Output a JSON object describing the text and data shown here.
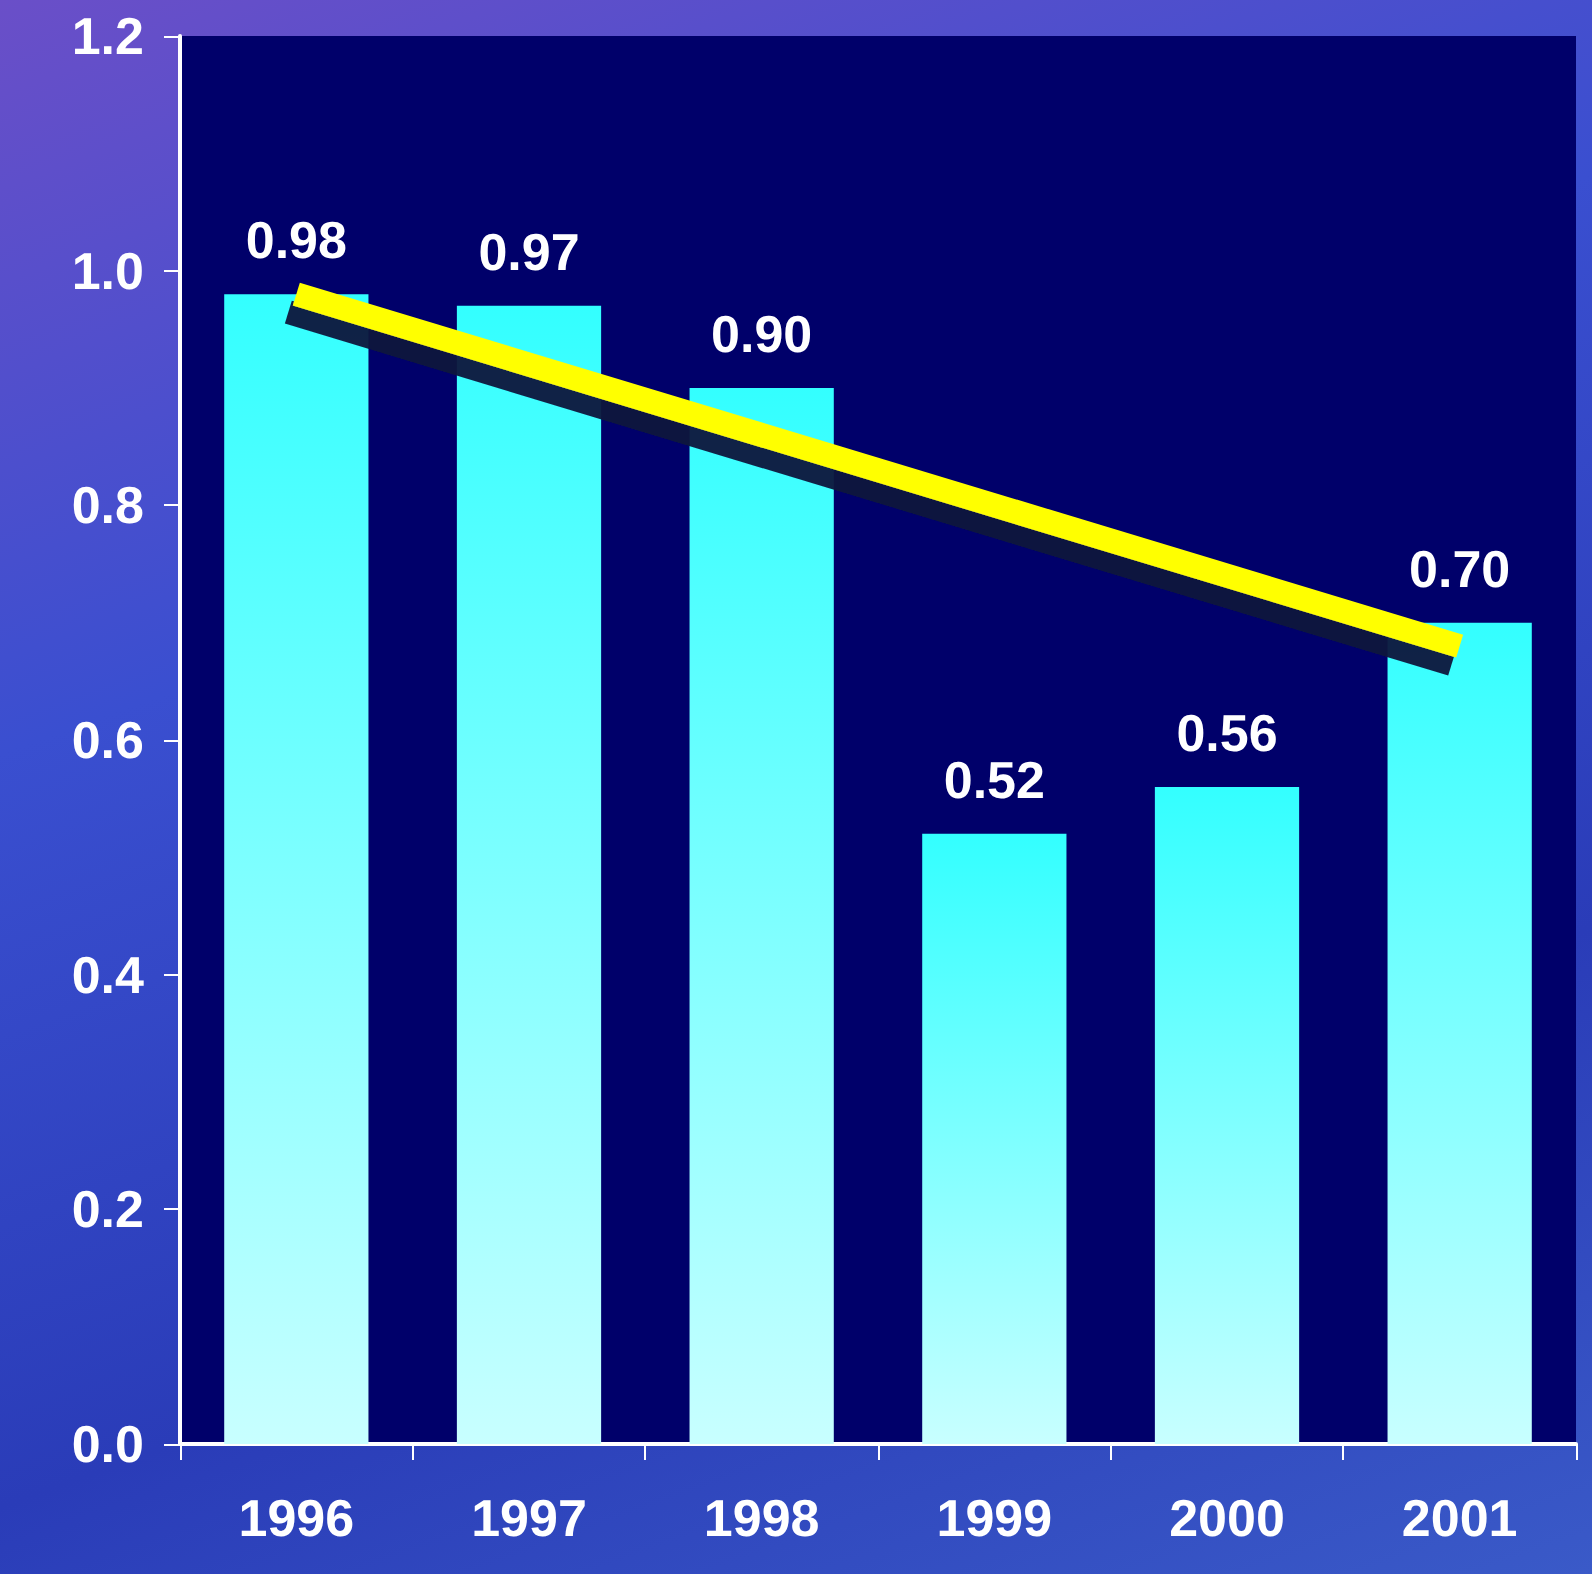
{
  "chart_data": {
    "type": "bar",
    "categories": [
      "1996",
      "1997",
      "1998",
      "1999",
      "2000",
      "2001"
    ],
    "series": [
      {
        "color": "#33ffff",
        "values": [
          0.98,
          0.97,
          0.9,
          0.52,
          0.56,
          0.7
        ],
        "value_labels": [
          "0.98",
          "0.97",
          "0.90",
          "0.52",
          "0.56",
          "0.70"
        ]
      },
      {
        "type": "line",
        "color": "#ffff00",
        "values": [
          0.98,
          null,
          null,
          null,
          null,
          0.68
        ]
      }
    ],
    "ylim": [
      0,
      1.2
    ],
    "yticks": [
      {
        "value": 0,
        "label": "0.0"
      },
      {
        "value": 0.2,
        "label": "0.2"
      },
      {
        "value": 0.4,
        "label": "0.4"
      },
      {
        "value": 0.6,
        "label": "0.6"
      },
      {
        "value": 0.8,
        "label": "0.8"
      },
      {
        "value": 1,
        "label": "1.0"
      },
      {
        "value": 1.2,
        "label": "1.2"
      }
    ],
    "grid": false
  }
}
